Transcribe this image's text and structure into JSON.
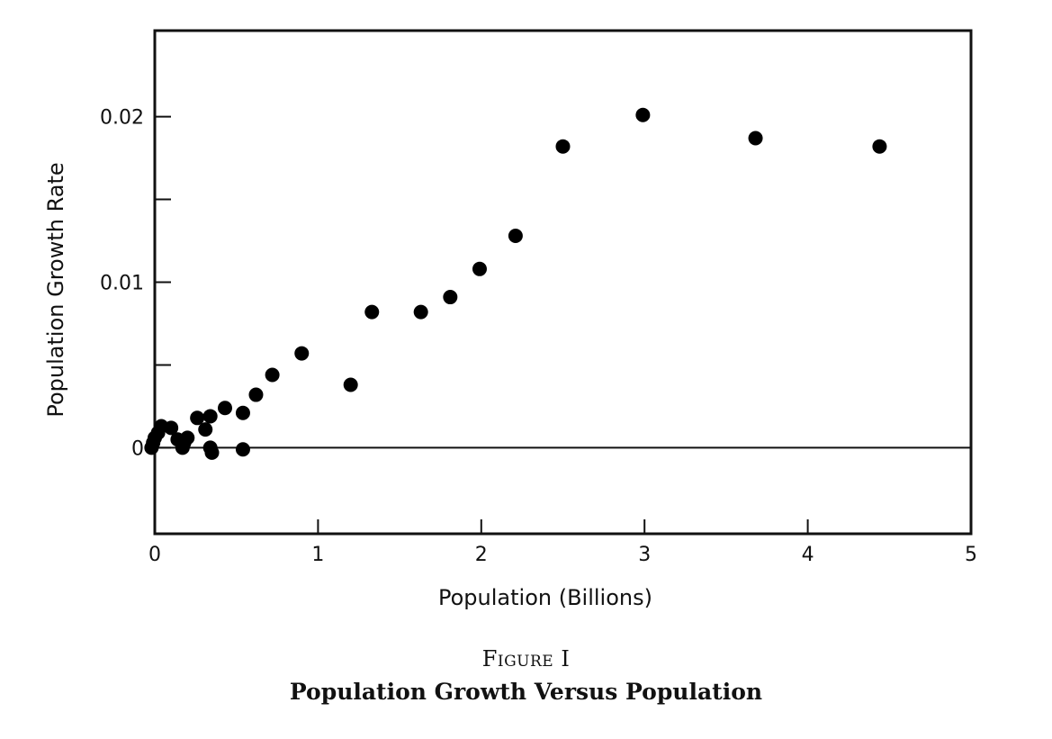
{
  "figure": {
    "label": "Figure I",
    "title": "Population Growth Versus Population"
  },
  "chart_data": {
    "type": "scatter",
    "xlabel": "Population (Billions)",
    "ylabel": "Population Growth Rate",
    "xlim": [
      0,
      5
    ],
    "ylim": [
      -0.0052,
      0.0252
    ],
    "x_ticks": [
      0,
      1,
      2,
      3,
      4,
      5
    ],
    "x_tick_labels": [
      "0",
      "1",
      "2",
      "3",
      "4",
      "5"
    ],
    "y_ticks": [
      0,
      0.005,
      0.01,
      0.015,
      0.02
    ],
    "y_tick_labels": [
      "0",
      "",
      "0.01",
      "",
      "0.02"
    ],
    "zero_line": true,
    "grid": false,
    "marker_color": "#000000",
    "points": [
      {
        "x": -0.02,
        "y": 0.0
      },
      {
        "x": -0.01,
        "y": 0.0003
      },
      {
        "x": 0.0,
        "y": 0.0006
      },
      {
        "x": 0.02,
        "y": 0.0009
      },
      {
        "x": 0.04,
        "y": 0.0013
      },
      {
        "x": 0.1,
        "y": 0.0012
      },
      {
        "x": 0.14,
        "y": 0.0005
      },
      {
        "x": 0.17,
        "y": 0.0
      },
      {
        "x": 0.18,
        "y": 0.0003
      },
      {
        "x": 0.2,
        "y": 0.0006
      },
      {
        "x": 0.26,
        "y": 0.0018
      },
      {
        "x": 0.31,
        "y": 0.0011
      },
      {
        "x": 0.34,
        "y": 0.0019
      },
      {
        "x": 0.34,
        "y": 0.0
      },
      {
        "x": 0.35,
        "y": -0.0003
      },
      {
        "x": 0.43,
        "y": 0.0024
      },
      {
        "x": 0.54,
        "y": 0.0021
      },
      {
        "x": 0.54,
        "y": -0.0001
      },
      {
        "x": 0.62,
        "y": 0.0032
      },
      {
        "x": 0.72,
        "y": 0.0044
      },
      {
        "x": 0.9,
        "y": 0.0057
      },
      {
        "x": 1.2,
        "y": 0.0038
      },
      {
        "x": 1.33,
        "y": 0.0082
      },
      {
        "x": 1.63,
        "y": 0.0082
      },
      {
        "x": 1.81,
        "y": 0.0091
      },
      {
        "x": 1.99,
        "y": 0.0108
      },
      {
        "x": 2.21,
        "y": 0.0128
      },
      {
        "x": 2.5,
        "y": 0.0182
      },
      {
        "x": 2.99,
        "y": 0.0201
      },
      {
        "x": 3.68,
        "y": 0.0187
      },
      {
        "x": 4.44,
        "y": 0.0182
      }
    ]
  }
}
